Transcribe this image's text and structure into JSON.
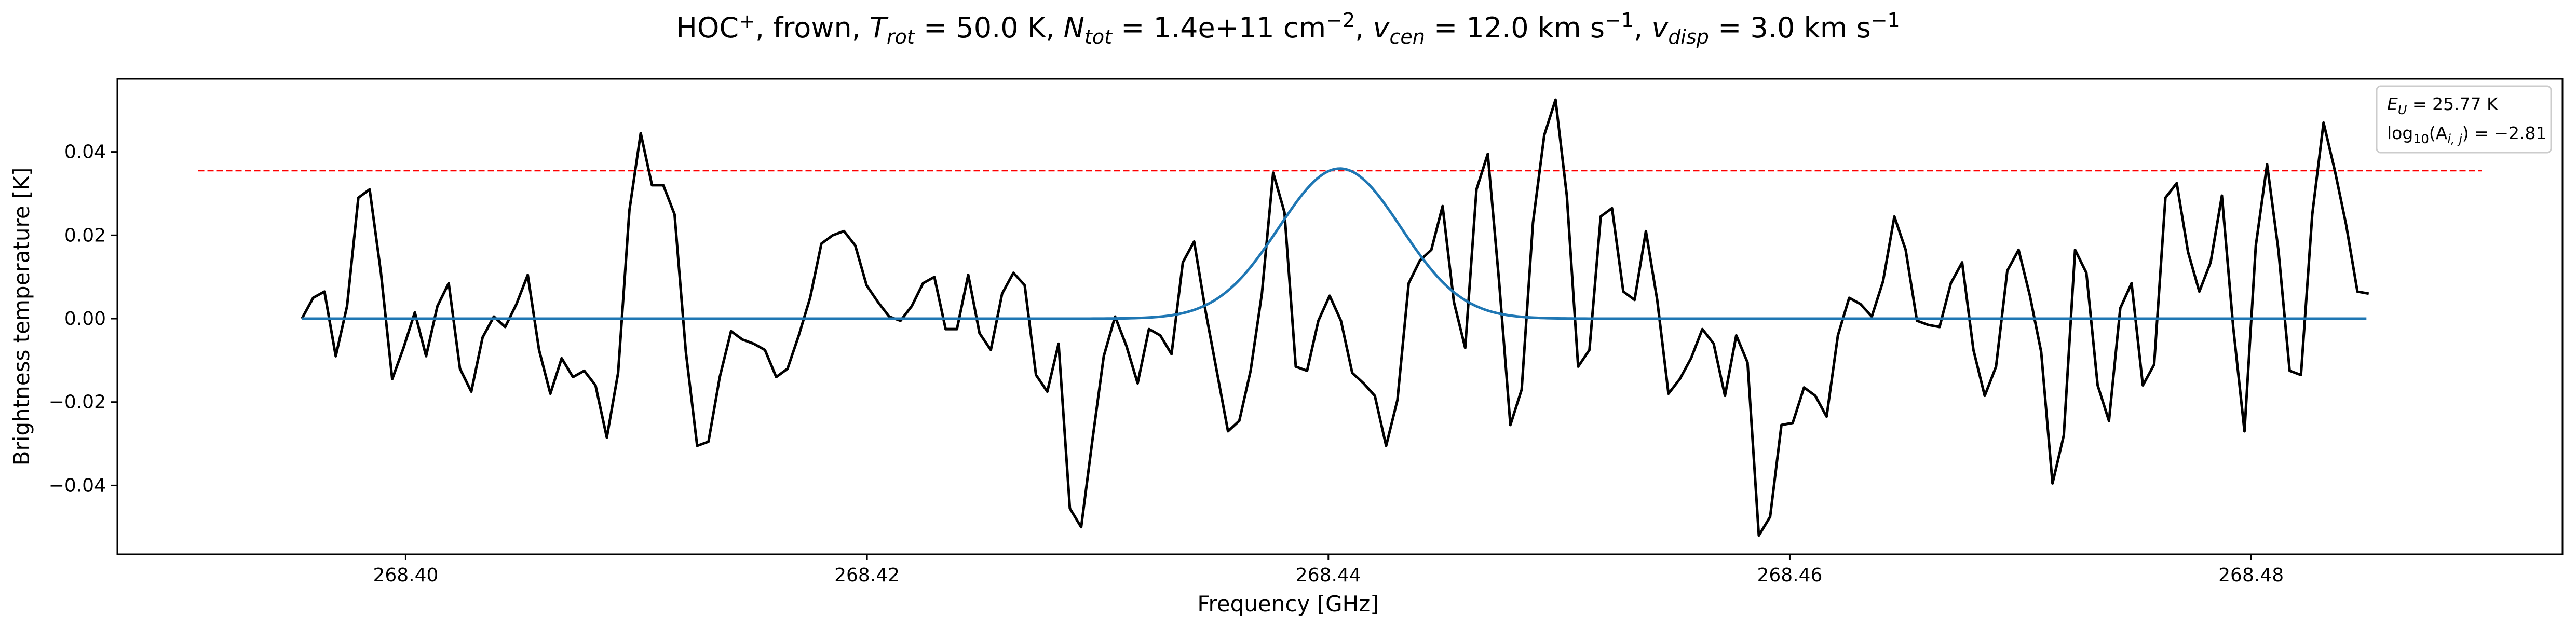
{
  "chart_data": {
    "type": "line",
    "title_parts": {
      "species": "HOC",
      "species_sup": "+",
      "sep1": ", frown, ",
      "trot_sym": "T",
      "trot_sub": "rot",
      "trot_val": " =  50.0 K, ",
      "ntot_sym": "N",
      "ntot_sub": "tot",
      "ntot_val": " =  1.4e+11 cm",
      "ntot_exp": "−2",
      "sep2": ", ",
      "vcen_sym": "v",
      "vcen_sub": "cen",
      "vcen_val": " =  12.0 km s",
      "vcen_exp": "−1",
      "sep3": ", ",
      "vdisp_sym": "v",
      "vdisp_sub": "disp",
      "vdisp_val": " =  3.0 km s",
      "vdisp_exp": "−1"
    },
    "xlabel": "Frequency [GHz]",
    "ylabel": "Brightness temperature [K]",
    "xlim": [
      268.3875,
      268.4935
    ],
    "ylim": [
      -0.0565,
      0.0575
    ],
    "xticks": [
      268.4,
      268.42,
      268.44,
      268.46,
      268.48
    ],
    "xtick_labels": [
      "268.40",
      "268.42",
      "268.44",
      "268.46",
      "268.48"
    ],
    "yticks": [
      -0.04,
      -0.02,
      0.0,
      0.02,
      0.04
    ],
    "ytick_labels": [
      "−0.04",
      "−0.02",
      "0.00",
      "0.02",
      "0.04"
    ],
    "grid": false,
    "legend": {
      "position": "top-right",
      "line1_sym": "E",
      "line1_sub": "U",
      "line1_val": " = 25.77 K",
      "line2_pre": "log",
      "line2_sub": "10",
      "line2_mid": "(A",
      "line2_sub2": "i, j",
      "line2_val": ") = −2.81"
    },
    "threshold": {
      "y": 0.0355,
      "x_start": 268.391,
      "x_end": 268.49,
      "color": "#ff0000",
      "style": "dashed"
    },
    "model": {
      "color": "#1f77b4",
      "x_start": 268.3955,
      "x_end": 268.485,
      "amplitude": 0.036,
      "center": 268.4405,
      "sigma": 0.00265
    },
    "spectrum": {
      "color": "#000000",
      "x_start": 268.3955,
      "x_end": 268.4851,
      "values": [
        0.0,
        0.005,
        0.0065,
        -0.009,
        0.003,
        0.029,
        0.031,
        0.011,
        -0.0145,
        -0.007,
        0.0015,
        -0.009,
        0.003,
        0.0085,
        -0.012,
        -0.0175,
        -0.0045,
        0.0005,
        -0.002,
        0.0035,
        0.0105,
        -0.0075,
        -0.018,
        -0.0095,
        -0.014,
        -0.0125,
        -0.016,
        -0.0285,
        -0.013,
        0.026,
        0.0445,
        0.032,
        0.032,
        0.025,
        -0.008,
        -0.0305,
        -0.0295,
        -0.014,
        -0.003,
        -0.005,
        -0.006,
        -0.0075,
        -0.014,
        -0.012,
        -0.004,
        0.005,
        0.018,
        0.02,
        0.021,
        0.0175,
        0.008,
        0.004,
        0.0005,
        -0.0005,
        0.003,
        0.0085,
        0.01,
        -0.0025,
        -0.0025,
        0.0105,
        -0.0035,
        -0.0075,
        0.006,
        0.011,
        0.008,
        -0.0135,
        -0.0175,
        -0.006,
        -0.0455,
        -0.05,
        -0.029,
        -0.009,
        0.0005,
        -0.0065,
        -0.0155,
        -0.0025,
        -0.004,
        -0.0085,
        0.0135,
        0.0185,
        0.002,
        -0.0125,
        -0.027,
        -0.0245,
        -0.0125,
        0.006,
        0.035,
        0.0255,
        -0.0115,
        -0.0125,
        -0.0005,
        0.0055,
        -0.0005,
        -0.013,
        -0.0155,
        -0.0185,
        -0.0305,
        -0.0195,
        0.0085,
        0.014,
        0.0165,
        0.027,
        0.004,
        -0.007,
        0.031,
        0.0395,
        0.009,
        -0.0255,
        -0.017,
        0.023,
        0.044,
        0.0525,
        0.0295,
        -0.0115,
        -0.0075,
        0.0245,
        0.0265,
        0.0065,
        0.0045,
        0.021,
        0.0045,
        -0.018,
        -0.0145,
        -0.0095,
        -0.0025,
        -0.006,
        -0.0185,
        -0.004,
        -0.0105,
        -0.052,
        -0.0475,
        -0.0255,
        -0.025,
        -0.0165,
        -0.0185,
        -0.0235,
        -0.004,
        0.005,
        0.0035,
        0.0005,
        0.009,
        0.0245,
        0.0165,
        -0.0005,
        -0.0015,
        -0.002,
        0.0085,
        0.0135,
        -0.0075,
        -0.0185,
        -0.0115,
        0.0115,
        0.0165,
        0.0055,
        -0.008,
        -0.0395,
        -0.028,
        0.0165,
        0.011,
        -0.016,
        -0.0245,
        0.0025,
        0.0085,
        -0.016,
        -0.011,
        0.029,
        0.0325,
        0.016,
        0.0065,
        0.0135,
        0.0295,
        -0.002,
        -0.027,
        0.0175,
        0.037,
        0.0165,
        -0.0125,
        -0.0135,
        0.025,
        0.047,
        0.0355,
        0.0225,
        0.0065,
        0.006
      ]
    }
  }
}
